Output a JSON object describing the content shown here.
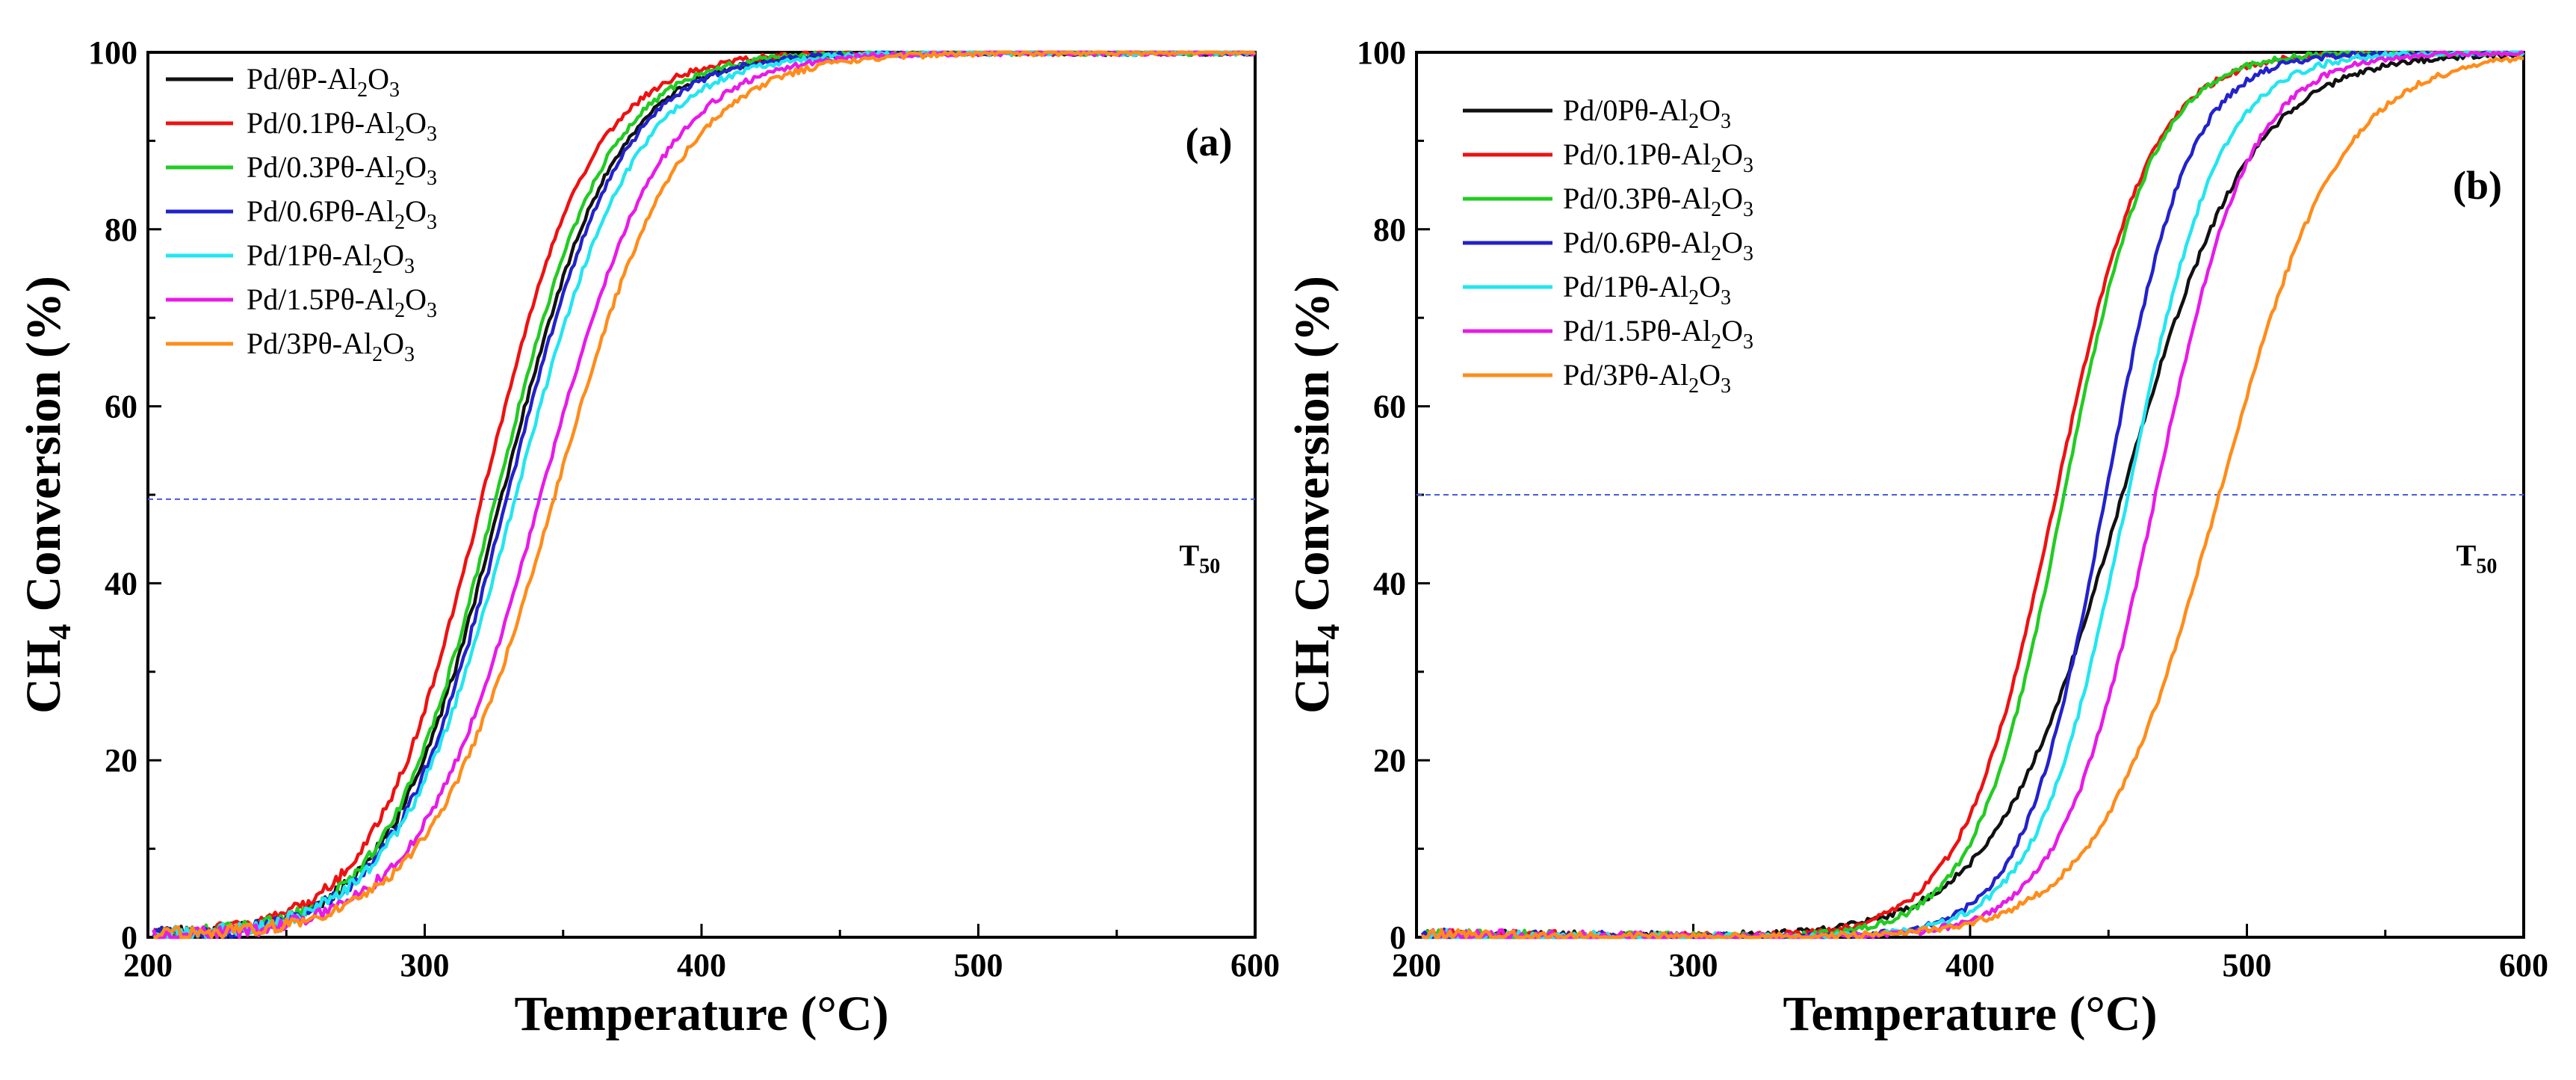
{
  "chart_data": [
    {
      "id": "a",
      "type": "line",
      "panel_label": "(a)",
      "xlabel": "Temperature (°C)",
      "ylabel": "CH4 Conversion (%)",
      "ylabel_parts": {
        "pre": "CH",
        "sub": "4",
        "post": " Conversion (%)"
      },
      "xlim": [
        200,
        600
      ],
      "ylim": [
        0,
        100
      ],
      "xticks": [
        200,
        300,
        400,
        500,
        600
      ],
      "yticks": [
        0,
        20,
        40,
        60,
        80,
        100
      ],
      "reference_line": {
        "y": 49.5,
        "label_main": "T",
        "label_sub": "50",
        "label_x": 580,
        "label_y": 42,
        "color": "#4a5bd9"
      },
      "legend_position": "top-left",
      "series": [
        {
          "name": "Pd/θP-Al2O3",
          "label_parts": [
            "Pd/θP-Al",
            "2",
            "O",
            "3"
          ],
          "color": "#111111",
          "t50": 328,
          "k": 20.5,
          "x0": 202,
          "x1": 600
        },
        {
          "name": "Pd/0.1Pθ-Al2O3",
          "label_parts": [
            "Pd/0.1Pθ-Al",
            "2",
            "O",
            "3"
          ],
          "color": "#ee1111",
          "t50": 321,
          "k": 19.8,
          "x0": 202,
          "x1": 600
        },
        {
          "name": "Pd/0.3Pθ-Al2O3",
          "label_parts": [
            "Pd/0.3Pθ-Al",
            "2",
            "O",
            "3"
          ],
          "color": "#22cc22",
          "t50": 326,
          "k": 20.0,
          "x0": 202,
          "x1": 600
        },
        {
          "name": "Pd/0.6Pθ-Al2O3",
          "label_parts": [
            "Pd/0.6Pθ-Al",
            "2",
            "O",
            "3"
          ],
          "color": "#2222cc",
          "t50": 330,
          "k": 20.5,
          "x0": 202,
          "x1": 600
        },
        {
          "name": "Pd/1Pθ-Al2O3",
          "label_parts": [
            "Pd/1Pθ-Al",
            "2",
            "O",
            "3"
          ],
          "color": "#22e6f0",
          "t50": 333,
          "k": 21.5,
          "x0": 202,
          "x1": 600
        },
        {
          "name": "Pd/1.5Pθ-Al2O3",
          "label_parts": [
            "Pd/1.5Pθ-Al",
            "2",
            "O",
            "3"
          ],
          "color": "#e81ae8",
          "t50": 342,
          "k": 22.0,
          "x0": 202,
          "x1": 600
        },
        {
          "name": "Pd/3Pθ-Al2O3",
          "label_parts": [
            "Pd/3Pθ-Al",
            "2",
            "O",
            "3"
          ],
          "color": "#ff8c1a",
          "t50": 347,
          "k": 23.0,
          "x0": 202,
          "x1": 600
        }
      ]
    },
    {
      "id": "b",
      "type": "line",
      "panel_label": "(b)",
      "xlabel": "Temperature (°C)",
      "ylabel": "CH4 Conversion (%)",
      "ylabel_parts": {
        "pre": "CH",
        "sub": "4",
        "post": " Conversion (%)"
      },
      "xlim": [
        200,
        600
      ],
      "ylim": [
        0,
        100
      ],
      "xticks": [
        200,
        300,
        400,
        500,
        600
      ],
      "yticks": [
        0,
        20,
        40,
        60,
        80,
        100
      ],
      "reference_line": {
        "y": 50,
        "label_main": "T",
        "label_sub": "50",
        "label_x": 583,
        "label_y": 42,
        "color": "#4a5bd9"
      },
      "legend_position": "top-left",
      "series": [
        {
          "name": "Pd/0Pθ-Al2O3",
          "label_parts": [
            "Pd/0Pθ-Al",
            "2",
            "O",
            "3"
          ],
          "color": "#111111",
          "t50": 455,
          "k": 23.0,
          "x0": 202,
          "x1": 600
        },
        {
          "name": "Pd/0.1Pθ-Al2O3",
          "label_parts": [
            "Pd/0.1Pθ-Al",
            "2",
            "O",
            "3"
          ],
          "color": "#ee1111",
          "t50": 431,
          "k": 17.0,
          "x0": 202,
          "x1": 600
        },
        {
          "name": "Pd/0.3Pθ-Al2O3",
          "label_parts": [
            "Pd/0.3Pθ-Al",
            "2",
            "O",
            "3"
          ],
          "color": "#22cc22",
          "t50": 434,
          "k": 16.0,
          "x0": 202,
          "x1": 600
        },
        {
          "name": "Pd/0.6Pθ-Al2O3",
          "label_parts": [
            "Pd/0.6Pθ-Al",
            "2",
            "O",
            "3"
          ],
          "color": "#2222cc",
          "t50": 449,
          "k": 15.0,
          "x0": 202,
          "x1": 600
        },
        {
          "name": "Pd/1Pθ-Al2O3",
          "label_parts": [
            "Pd/1Pθ-Al",
            "2",
            "O",
            "3"
          ],
          "color": "#22e6f0",
          "t50": 457,
          "k": 16.5,
          "x0": 202,
          "x1": 600
        },
        {
          "name": "Pd/1.5Pθ-Al2O3",
          "label_parts": [
            "Pd/1.5Pθ-Al",
            "2",
            "O",
            "3"
          ],
          "color": "#e81ae8",
          "t50": 467,
          "k": 17.0,
          "x0": 202,
          "x1": 600
        },
        {
          "name": "Pd/3Pθ-Al2O3",
          "label_parts": [
            "Pd/3Pθ-Al",
            "2",
            "O",
            "3"
          ],
          "color": "#ff8c1a",
          "t50": 490,
          "k": 22.0,
          "x0": 202,
          "x1": 600
        }
      ]
    }
  ]
}
